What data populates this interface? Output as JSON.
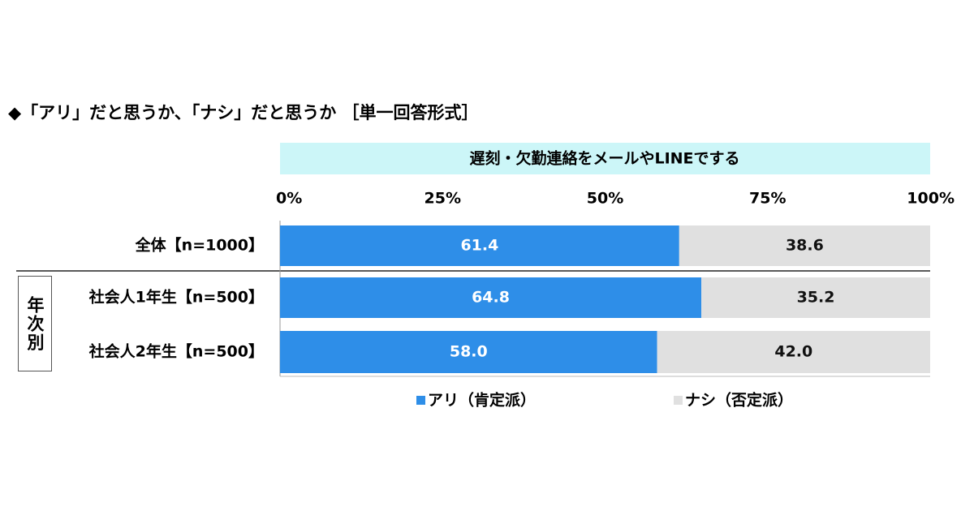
{
  "chart_data": {
    "type": "stacked-bar-horizontal",
    "title": "◆「アリ」だと思うか、「ナシ」だと思うか ［単一回答形式］",
    "subtitle": "遅刻・欠勤連絡をメールやLINEでする",
    "categories": [
      "全体【n=1000】",
      "社会人1年生【n=500】",
      "社会人2年生【n=500】"
    ],
    "group_label": "年次別",
    "series": [
      {
        "name": "アリ（肯定派）",
        "color": "#2e8ee8",
        "values": [
          61.4,
          64.8,
          58.0
        ],
        "value_labels": [
          "61.4",
          "64.8",
          "58.0"
        ]
      },
      {
        "name": "ナシ（否定派）",
        "color": "#e0e0e0",
        "values": [
          38.6,
          35.2,
          42.0
        ],
        "value_labels": [
          "38.6",
          "35.2",
          "42.0"
        ]
      }
    ],
    "xlim": [
      0,
      100
    ],
    "xticks": [
      {
        "value": 0,
        "label": "0%"
      },
      {
        "value": 25,
        "label": "25%"
      },
      {
        "value": 50,
        "label": "50%"
      },
      {
        "value": 75,
        "label": "75%"
      },
      {
        "value": 100,
        "label": "100%"
      }
    ]
  }
}
